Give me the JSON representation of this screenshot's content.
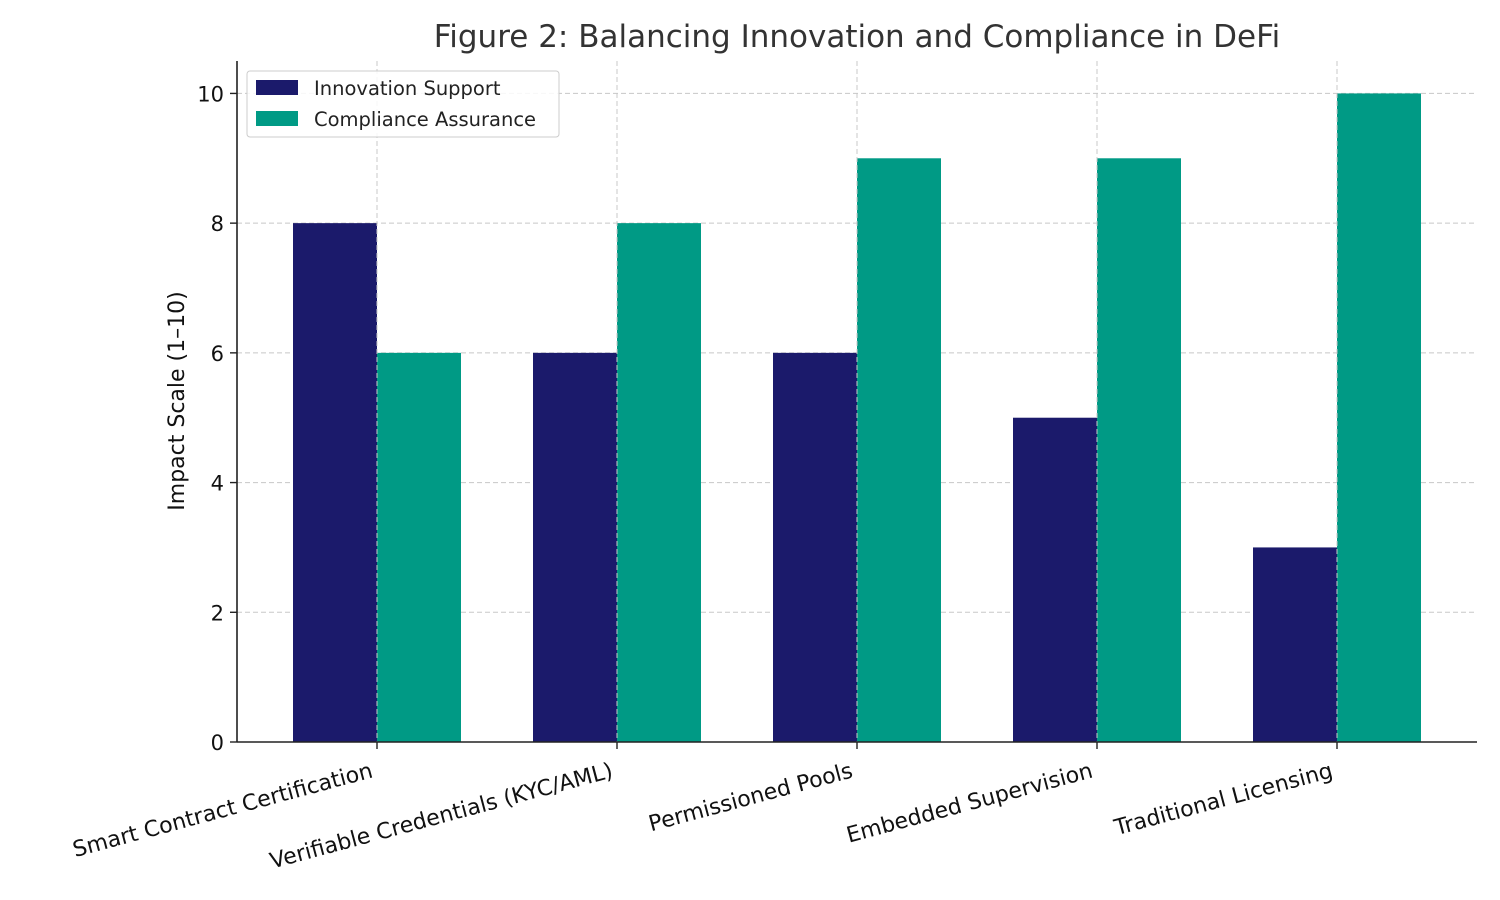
{
  "chart_data": {
    "type": "bar",
    "title": "Figure 2: Balancing Innovation and Compliance in DeFi",
    "xlabel": "",
    "ylabel": "Impact Scale (1–10)",
    "ylim": [
      0,
      10.5
    ],
    "yticks": [
      0,
      2,
      4,
      6,
      8,
      10
    ],
    "grid": true,
    "legend_position": "top-left",
    "categories": [
      "Smart Contract Certification",
      "Verifiable Credentials (KYC/AML)",
      "Permissioned Pools",
      "Embedded Supervision",
      "Traditional Licensing"
    ],
    "series": [
      {
        "name": "Innovation Support",
        "color": "#1b1a6b",
        "values": [
          8,
          6,
          6,
          5,
          3
        ]
      },
      {
        "name": "Compliance Assurance",
        "color": "#009a85",
        "values": [
          6,
          8,
          9,
          9,
          10
        ]
      }
    ]
  }
}
